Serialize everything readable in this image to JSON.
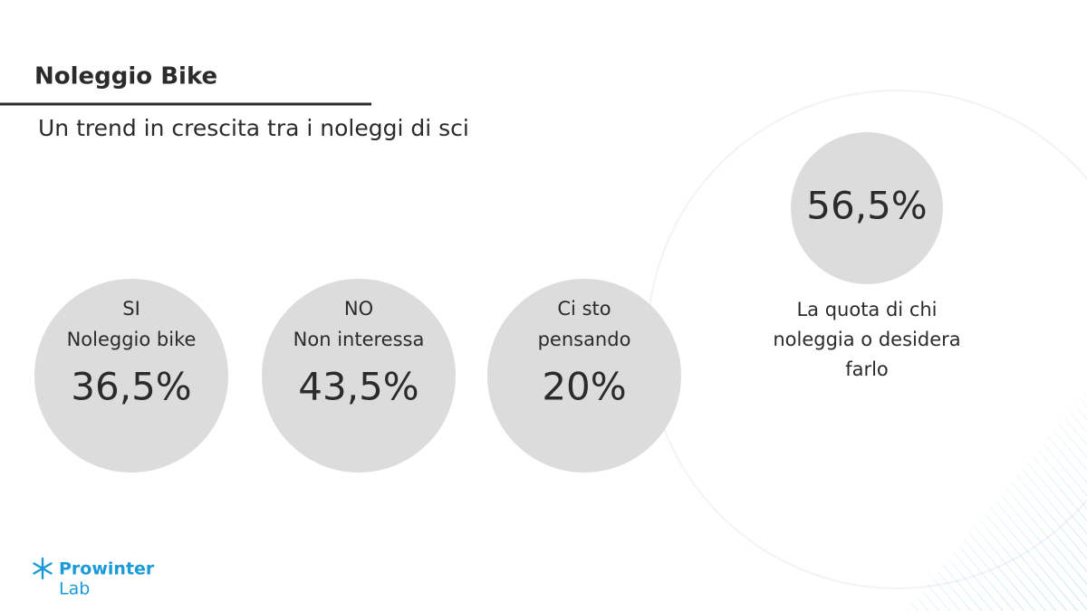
{
  "header": {
    "title": "Noleggio Bike",
    "subtitle": "Un trend in crescita tra i noleggi di sci"
  },
  "circles": [
    {
      "label": [
        "SI",
        "Noleggio bike"
      ],
      "value": "36,5%"
    },
    {
      "label": [
        "NO",
        "Non interessa"
      ],
      "value": "43,5%"
    },
    {
      "label": [
        "Ci sto",
        "pensando"
      ],
      "value": "20%"
    }
  ],
  "highlight": {
    "value": "56,5%",
    "caption": [
      "La quota di chi",
      "noleggia o desidera",
      "farlo"
    ]
  },
  "logo": {
    "line1": "Prowinter",
    "line2": "Lab"
  }
}
